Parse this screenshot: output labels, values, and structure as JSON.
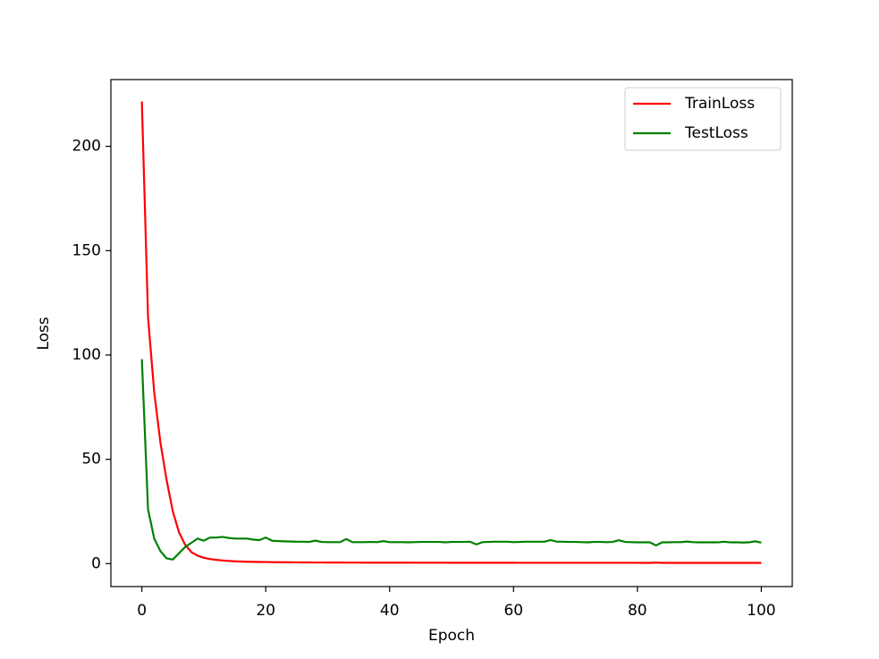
{
  "chart_data": {
    "type": "line",
    "x_label": "Epoch",
    "y_label": "Loss",
    "x": [
      0,
      1,
      2,
      3,
      4,
      5,
      6,
      7,
      8,
      9,
      10,
      11,
      12,
      13,
      14,
      15,
      16,
      17,
      18,
      19,
      20,
      21,
      22,
      23,
      24,
      25,
      26,
      27,
      28,
      29,
      30,
      31,
      32,
      33,
      34,
      35,
      36,
      37,
      38,
      39,
      40,
      41,
      42,
      43,
      44,
      45,
      46,
      47,
      48,
      49,
      50,
      51,
      52,
      53,
      54,
      55,
      56,
      57,
      58,
      59,
      60,
      61,
      62,
      63,
      64,
      65,
      66,
      67,
      68,
      69,
      70,
      71,
      72,
      73,
      74,
      75,
      76,
      77,
      78,
      79,
      80,
      81,
      82,
      83,
      84,
      85,
      86,
      87,
      88,
      89,
      90,
      91,
      92,
      93,
      94,
      95,
      96,
      97,
      98,
      99,
      100
    ],
    "series": [
      {
        "name": "TrainLoss",
        "color": "#ff0000",
        "values": [
          221.5,
          118,
          82,
          58,
          40,
          25,
          15,
          9,
          5.5,
          3.8,
          2.8,
          2.2,
          1.8,
          1.5,
          1.3,
          1.1,
          1.0,
          0.9,
          0.85,
          0.8,
          0.75,
          0.7,
          0.68,
          0.65,
          0.63,
          0.6,
          0.58,
          0.57,
          0.55,
          0.54,
          0.53,
          0.52,
          0.51,
          0.5,
          0.5,
          0.49,
          0.48,
          0.48,
          0.47,
          0.47,
          0.46,
          0.46,
          0.45,
          0.45,
          0.44,
          0.44,
          0.44,
          0.43,
          0.43,
          0.43,
          0.42,
          0.42,
          0.42,
          0.41,
          0.41,
          0.41,
          0.41,
          0.4,
          0.4,
          0.4,
          0.4,
          0.39,
          0.39,
          0.39,
          0.39,
          0.39,
          0.39,
          0.39,
          0.39,
          0.39,
          0.39,
          0.38,
          0.38,
          0.38,
          0.38,
          0.38,
          0.38,
          0.38,
          0.38,
          0.38,
          0.38,
          0.37,
          0.37,
          0.5,
          0.37,
          0.36,
          0.36,
          0.36,
          0.36,
          0.36,
          0.36,
          0.35,
          0.35,
          0.35,
          0.35,
          0.35,
          0.35,
          0.35,
          0.35,
          0.35,
          0.35
        ]
      },
      {
        "name": "TestLoss",
        "color": "#008000",
        "values": [
          98,
          26,
          12,
          6,
          2.5,
          2,
          5,
          8,
          10,
          12,
          11,
          12.5,
          12.5,
          12.8,
          12.3,
          12,
          12,
          12,
          11.5,
          11.3,
          12.5,
          11,
          10.8,
          10.7,
          10.6,
          10.5,
          10.5,
          10.4,
          11,
          10.4,
          10.3,
          10.3,
          10.3,
          11.8,
          10.3,
          10.3,
          10.3,
          10.4,
          10.3,
          10.8,
          10.3,
          10.3,
          10.3,
          10.2,
          10.3,
          10.4,
          10.4,
          10.4,
          10.4,
          10.2,
          10.4,
          10.4,
          10.4,
          10.5,
          9.2,
          10.3,
          10.4,
          10.5,
          10.5,
          10.5,
          10.3,
          10.4,
          10.5,
          10.5,
          10.5,
          10.5,
          11.3,
          10.5,
          10.5,
          10.4,
          10.4,
          10.3,
          10.2,
          10.4,
          10.4,
          10.3,
          10.4,
          11.2,
          10.4,
          10.3,
          10.2,
          10.2,
          10.2,
          8.7,
          10.2,
          10.2,
          10.3,
          10.3,
          10.6,
          10.3,
          10.2,
          10.2,
          10.2,
          10.2,
          10.5,
          10.2,
          10.2,
          10.1,
          10.2,
          10.7,
          10.1
        ]
      }
    ],
    "xlim": [
      -5,
      105
    ],
    "ylim": [
      -11,
      232
    ],
    "xticks": [
      0,
      20,
      40,
      60,
      80,
      100
    ],
    "yticks": [
      0,
      50,
      100,
      150,
      200
    ],
    "legend": "upper right"
  }
}
